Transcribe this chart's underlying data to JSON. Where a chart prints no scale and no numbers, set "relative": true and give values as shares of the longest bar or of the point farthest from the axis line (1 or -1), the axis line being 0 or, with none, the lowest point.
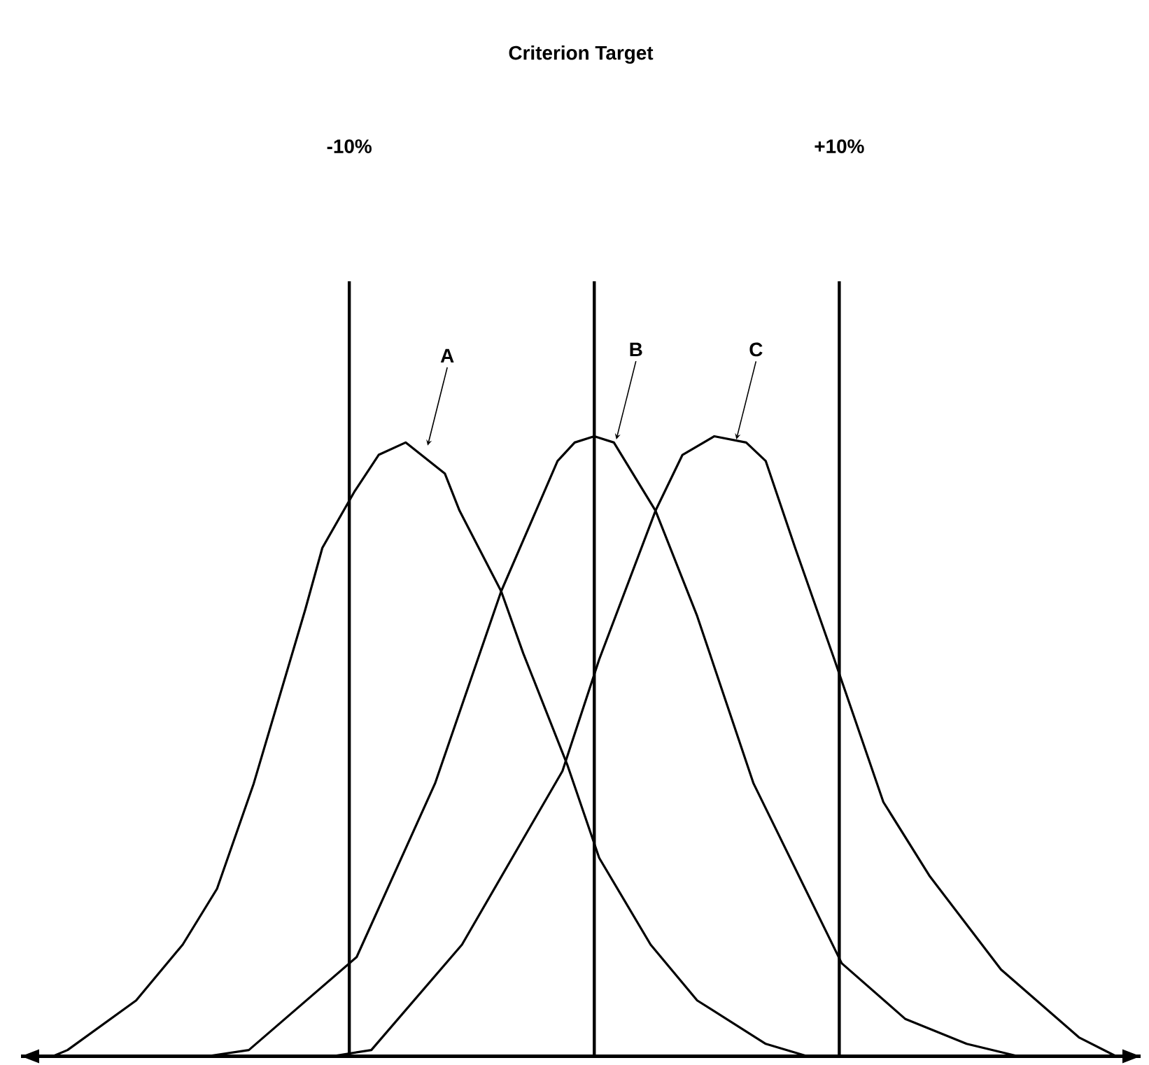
{
  "chart_data": {
    "type": "line",
    "relative": true,
    "tick_labels": "x",
    "marker": "none",
    "line_style": "solid",
    "xlim": [
      -23.4,
      22.3
    ],
    "title": "Criterion Target",
    "xticks": [
      {
        "value": -10,
        "label": "-10%"
      },
      {
        "value": 10,
        "label": "+10%"
      }
    ],
    "series": [
      {
        "name": "A",
        "color": "#000000",
        "x": [
          -22.1,
          -21.5,
          -18.7,
          -16.8,
          -15.4,
          -13.9,
          -11.8,
          -11.1,
          -9.8,
          -8.8,
          -7.7,
          -6.1,
          -5.5,
          -3.8,
          -2.9,
          -1.1,
          0.2,
          2.3,
          4.2,
          7.0,
          8.7
        ],
        "values": [
          0,
          0.01,
          0.09,
          0.18,
          0.27,
          0.44,
          0.72,
          0.82,
          0.91,
          0.97,
          0.99,
          0.94,
          0.88,
          0.75,
          0.65,
          0.47,
          0.32,
          0.18,
          0.09,
          0.02,
          0
        ]
      },
      {
        "name": "B",
        "color": "#000000",
        "x": [
          -15.8,
          -14.1,
          -9.7,
          -6.5,
          -3.8,
          -1.5,
          -0.8,
          0,
          0.8,
          2.5,
          4.2,
          6.5,
          10.1,
          12.7,
          15.2,
          17.3
        ],
        "values": [
          0,
          0.01,
          0.16,
          0.44,
          0.75,
          0.96,
          0.99,
          1.0,
          0.99,
          0.88,
          0.71,
          0.44,
          0.15,
          0.06,
          0.02,
          0
        ]
      },
      {
        "name": "C",
        "color": "#000000",
        "x": [
          -10.7,
          -9.1,
          -5.4,
          -1.3,
          0.2,
          2.5,
          3.6,
          4.9,
          6.2,
          7.0,
          8.2,
          9.8,
          11.8,
          13.7,
          16.6,
          19.8,
          21.3
        ],
        "values": [
          0,
          0.01,
          0.18,
          0.46,
          0.64,
          0.88,
          0.97,
          1.0,
          0.99,
          0.96,
          0.82,
          0.64,
          0.41,
          0.29,
          0.14,
          0.03,
          0
        ]
      }
    ],
    "ref_lines": [
      {
        "axis": "x",
        "value": -10,
        "color": "#000000"
      },
      {
        "axis": "x",
        "value": 0,
        "color": "#000000"
      },
      {
        "axis": "x",
        "value": 10,
        "color": "#000000"
      }
    ]
  }
}
